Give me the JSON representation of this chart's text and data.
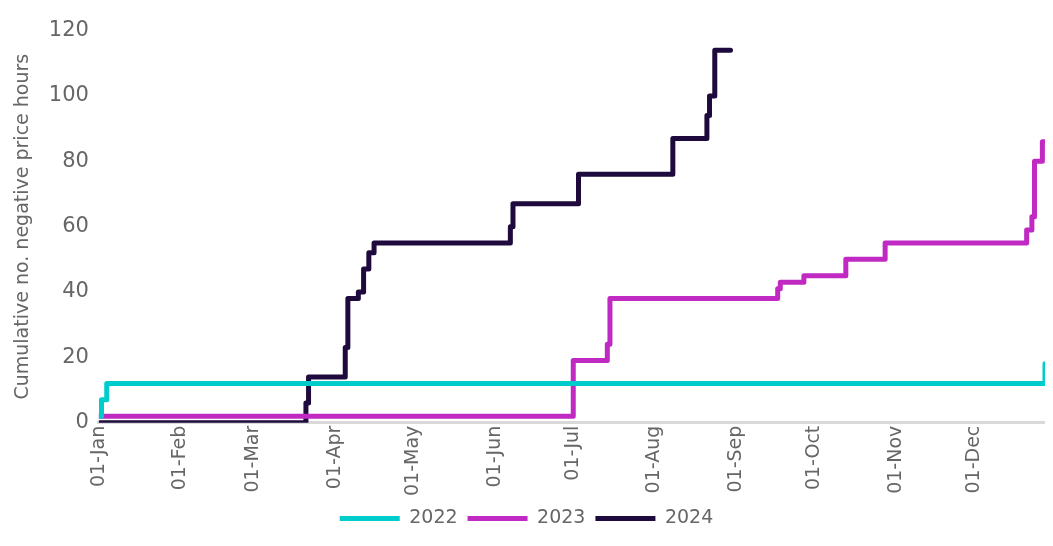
{
  "chart_data": {
    "type": "step",
    "ylabel": "Cumulative no. negative price hours",
    "xlim": [
      "--01-01",
      "--12-28"
    ],
    "xticks": [
      {
        "value": "--01-01",
        "label": "01-Jan"
      },
      {
        "value": "--02-01",
        "label": "01-Feb"
      },
      {
        "value": "--03-01",
        "label": "01-Mar"
      },
      {
        "value": "--04-01",
        "label": "01-Apr"
      },
      {
        "value": "--05-01",
        "label": "01-May"
      },
      {
        "value": "--06-01",
        "label": "01-Jun"
      },
      {
        "value": "--07-01",
        "label": "01-Jul"
      },
      {
        "value": "--08-01",
        "label": "01-Aug"
      },
      {
        "value": "--09-01",
        "label": "01-Sep"
      },
      {
        "value": "--10-01",
        "label": "01-Oct"
      },
      {
        "value": "--11-01",
        "label": "01-Nov"
      },
      {
        "value": "--12-01",
        "label": "01-Dec"
      }
    ],
    "ylim": [
      0,
      120
    ],
    "yticks": [
      0,
      20,
      40,
      60,
      80,
      100,
      120
    ],
    "grid": false,
    "legend": "bottom",
    "series": [
      {
        "name": "2022",
        "color": "#00cccc",
        "x": [
          "--01-01",
          "--01-02",
          "--01-04",
          "--12-27",
          "--12-28"
        ],
        "values": [
          2,
          7,
          12,
          12,
          18
        ]
      },
      {
        "name": "2023",
        "color": "#c02ac3",
        "x": [
          "--01-01",
          "--07-01",
          "--07-14",
          "--07-15",
          "--09-17",
          "--09-18",
          "--09-27",
          "--10-13",
          "--10-28",
          "--12-20",
          "--12-21",
          "--12-23",
          "--12-24",
          "--12-27",
          "--12-28"
        ],
        "values": [
          2,
          19,
          24,
          38,
          41,
          43,
          45,
          50,
          55,
          55,
          59,
          63,
          80,
          86,
          86
        ]
      },
      {
        "name": "2024",
        "color": "#1e0a3c",
        "x": [
          "--01-01",
          "--03-21",
          "--03-22",
          "--04-05",
          "--04-06",
          "--04-10",
          "--04-12",
          "--04-14",
          "--04-16",
          "--06-07",
          "--06-08",
          "--07-03",
          "--08-08",
          "--08-21",
          "--08-22",
          "--08-24",
          "--08-30"
        ],
        "values": [
          0,
          6,
          14,
          23,
          38,
          40,
          47,
          52,
          55,
          60,
          67,
          76,
          87,
          94,
          100,
          114,
          114
        ]
      }
    ]
  }
}
